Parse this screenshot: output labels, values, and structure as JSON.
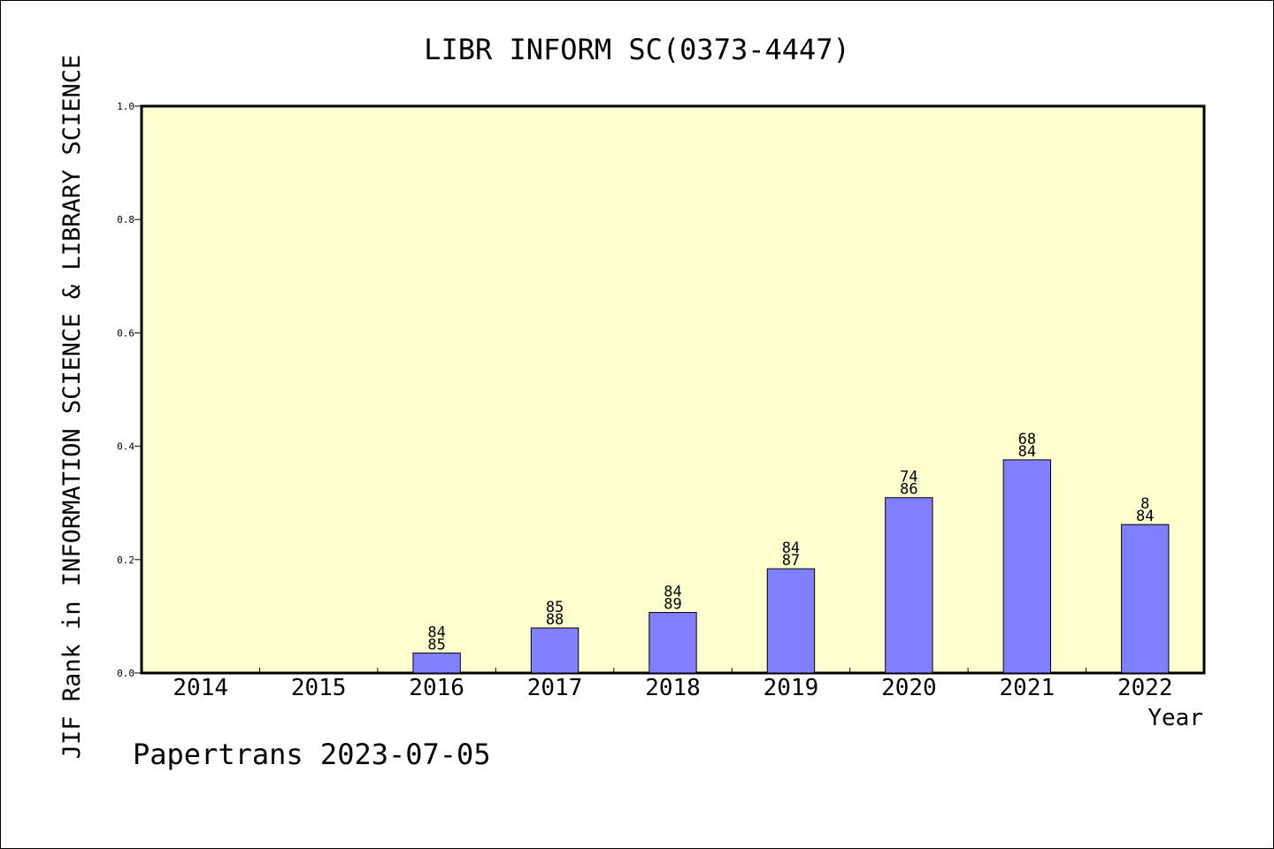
{
  "chart_data": {
    "type": "bar",
    "title": "LIBR INFORM SC(0373-4447)",
    "ylabel": "JIF Rank in INFORMATION SCIENCE & LIBRARY SCIENCE",
    "xlabel": "Year",
    "footer": "Papertrans 2023-07-05",
    "ylim": [
      0,
      1.0
    ],
    "yticks": [
      "0.0",
      "0.2",
      "0.4",
      "0.6",
      "0.8",
      "1.0"
    ],
    "categories": [
      "2014",
      "2015",
      "2016",
      "2017",
      "2018",
      "2019",
      "2020",
      "2021",
      "2022"
    ],
    "values": [
      null,
      null,
      0.0353,
      0.0795,
      0.1068,
      0.1839,
      0.3093,
      0.3761,
      0.2619
    ],
    "rank_labels": [
      null,
      null,
      [
        "84",
        "85"
      ],
      [
        "85",
        "88"
      ],
      [
        "84",
        "89"
      ],
      [
        "84",
        "87"
      ],
      [
        "74",
        "86"
      ],
      [
        "68",
        "84"
      ],
      [
        "8",
        "84"
      ]
    ],
    "grid": false,
    "colors": {
      "plot_background": "#ffffd0",
      "bar_fill": "#8080ff",
      "bar_stroke": "#000000"
    }
  }
}
